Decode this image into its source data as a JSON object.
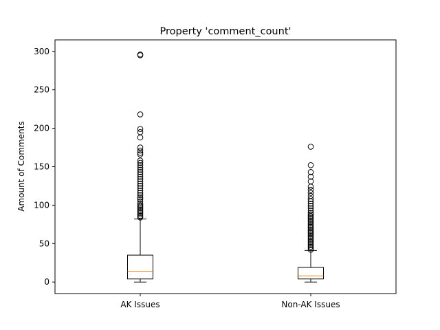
{
  "chart_data": {
    "type": "boxplot",
    "title": "Property 'comment_count'",
    "xlabel": "",
    "ylabel": "Amount of Comments",
    "ylim": [
      -15,
      315
    ],
    "yticks": [
      0,
      50,
      100,
      150,
      200,
      250,
      300
    ],
    "grid": false,
    "categories": [
      "AK Issues",
      "Non-AK Issues"
    ],
    "boxes": [
      {
        "label": "AK Issues",
        "whisker_low": 0,
        "q1": 4,
        "median": 14,
        "q3": 35,
        "whisker_high": 82,
        "outliers": [
          84,
          86,
          88,
          90,
          92,
          94,
          96,
          98,
          100,
          102,
          105,
          108,
          110,
          113,
          116,
          119,
          122,
          125,
          128,
          131,
          134,
          137,
          140,
          143,
          146,
          149,
          152,
          155,
          158,
          166,
          168,
          171,
          175,
          188,
          195,
          199,
          218,
          295,
          296
        ]
      },
      {
        "label": "Non-AK Issues",
        "whisker_low": 0,
        "q1": 4,
        "median": 8,
        "q3": 19,
        "whisker_high": 41,
        "outliers": [
          42,
          44,
          46,
          48,
          50,
          52,
          54,
          56,
          58,
          60,
          62,
          64,
          66,
          68,
          70,
          72,
          74,
          76,
          78,
          80,
          82,
          84,
          86,
          88,
          90,
          93,
          96,
          99,
          102,
          105,
          108,
          112,
          116,
          120,
          124,
          131,
          137,
          143,
          152,
          176
        ]
      }
    ]
  },
  "colors": {
    "box": "#000000",
    "median": "#ff7f0e",
    "outlier": "#000000",
    "background": "#ffffff"
  }
}
